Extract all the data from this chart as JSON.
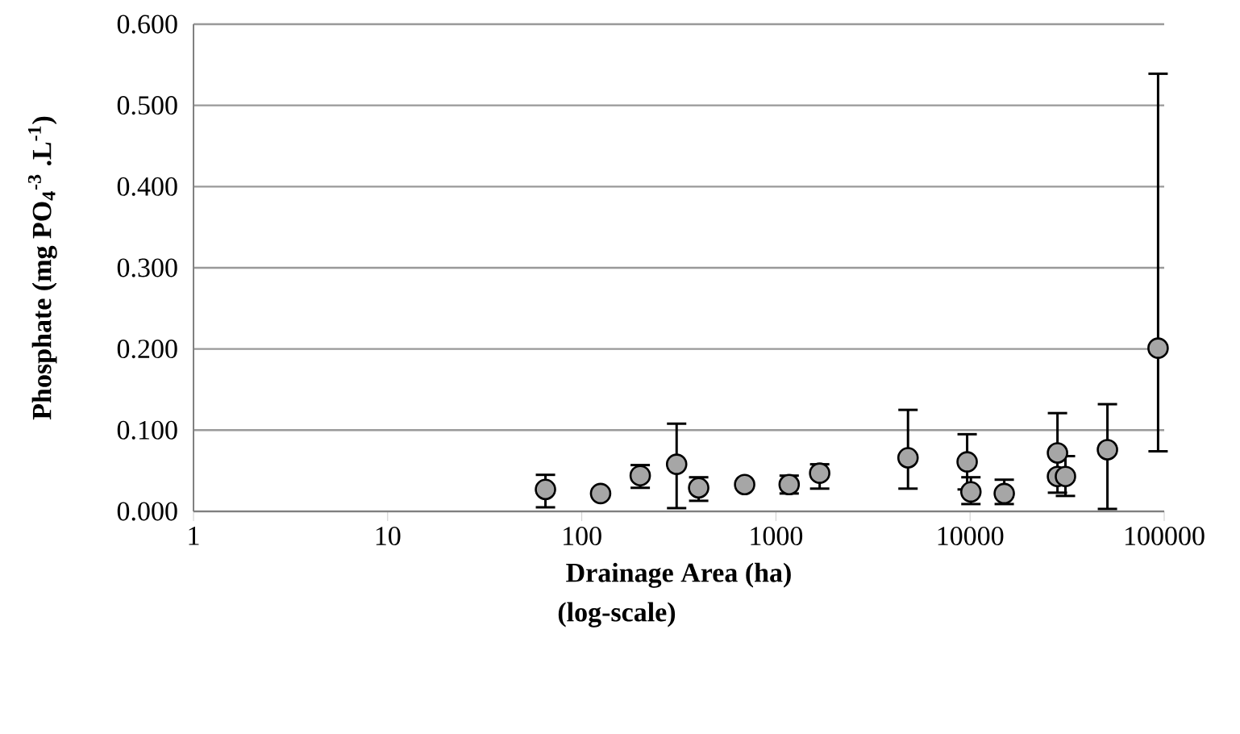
{
  "chart_data": {
    "type": "scatter",
    "xlabel": "Drainage Area (ha)",
    "ylabel": "Phosphate (mg PO$_{4}$$^{-3}$ .L$^{-1}$)",
    "annotations": [
      "(log-scale)"
    ],
    "log": "x",
    "x": [
      65,
      125,
      200,
      308,
      400,
      690,
      1170,
      1680,
      4790,
      9660,
      10100,
      15000,
      28200,
      28200,
      31000,
      51000,
      93000
    ],
    "values": [
      0.027,
      0.022,
      0.044,
      0.058,
      0.029,
      0.033,
      0.033,
      0.047,
      0.066,
      0.061,
      0.024,
      0.022,
      0.072,
      0.043,
      0.043,
      0.076,
      0.201
    ],
    "errors": [
      [
        0.005,
        0.045
      ],
      null,
      [
        0.029,
        0.057
      ],
      [
        0.004,
        0.108
      ],
      [
        0.013,
        0.042
      ],
      null,
      [
        0.022,
        0.044
      ],
      [
        0.028,
        0.058
      ],
      [
        0.028,
        0.125
      ],
      [
        0.027,
        0.095
      ],
      [
        0.009,
        0.042
      ],
      [
        0.009,
        0.039
      ],
      [
        0.023,
        0.121
      ],
      null,
      [
        0.019,
        0.068
      ],
      [
        0.003,
        0.132
      ],
      [
        0.074,
        0.539
      ]
    ],
    "color": "#a6a6a6",
    "marker": "circle",
    "grid": "y",
    "xlim": [
      1,
      100000
    ],
    "xticks": [
      1,
      10,
      100,
      1000,
      10000,
      100000
    ],
    "ylim": [
      0,
      0.6
    ],
    "yticks": [
      {
        "value": 0,
        "label": "0.000"
      },
      {
        "value": 0.1,
        "label": "0.100"
      },
      {
        "value": 0.2,
        "label": "0.200"
      },
      {
        "value": 0.3,
        "label": "0.300"
      },
      {
        "value": 0.4,
        "label": "0.400"
      },
      {
        "value": 0.5,
        "label": "0.500"
      },
      {
        "value": 0.6,
        "label": "0.600"
      }
    ]
  }
}
